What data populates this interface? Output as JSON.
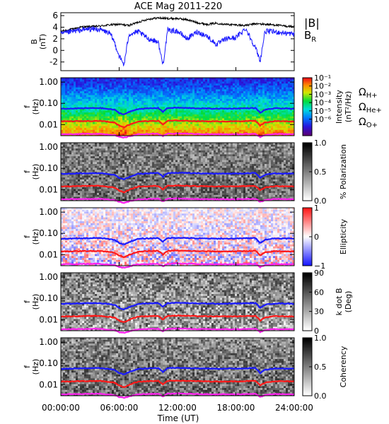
{
  "figure": {
    "title": "ACE Mag 2011-220",
    "time_axis_label": "Time (UT)"
  },
  "colors": {
    "b_total": "#000000",
    "b_radial": "#1a1aff",
    "omega_h": "#1a1aff",
    "omega_he": "#ff1a1a",
    "omega_o": "#ff22ee"
  },
  "gyro_labels": {
    "h": {
      "symbol": "Ω",
      "sub": "H+"
    },
    "he": {
      "symbol": "Ω",
      "sub": "He+"
    },
    "o": {
      "symbol": "Ω",
      "sub": "O+"
    }
  },
  "chart_data": [
    {
      "type": "line",
      "ylabel": "B",
      "yunit": "(nT)",
      "ylim": [
        -3.5,
        6.5
      ],
      "yticks": [
        -2,
        0,
        2,
        4,
        6
      ],
      "xlim": [
        "00:00:00",
        "24:00:00"
      ],
      "legend": {
        "placement": "outside-right"
      },
      "series": [
        {
          "name": "|B|",
          "color": "#000000",
          "x_hours": [
            0,
            1,
            2,
            3,
            4,
            5,
            6,
            7,
            8,
            9,
            10,
            11,
            12,
            13,
            14,
            15,
            16,
            17,
            18,
            19,
            20,
            21,
            22,
            23,
            24
          ],
          "values": [
            3.3,
            3.6,
            4.0,
            4.1,
            4.2,
            4.4,
            4.5,
            4.3,
            4.9,
            5.4,
            5.6,
            5.5,
            5.5,
            5.3,
            4.8,
            4.5,
            4.7,
            4.5,
            4.4,
            4.3,
            4.6,
            4.5,
            4.4,
            4.2,
            4.1
          ]
        },
        {
          "name": "B",
          "name_sub": "R",
          "color": "#1a1aff",
          "x_hours": [
            0,
            1,
            2,
            3,
            4,
            5,
            5.5,
            6,
            6.5,
            7,
            8,
            9,
            10,
            10.5,
            11,
            12,
            13,
            14,
            15,
            16,
            17,
            18,
            19,
            20,
            20.5,
            21,
            22,
            23,
            24
          ],
          "values": [
            2.8,
            3.2,
            3.5,
            3.7,
            3.6,
            3.0,
            1.5,
            -1.0,
            -2.5,
            2.8,
            3.2,
            2.0,
            1.5,
            -2.5,
            3.5,
            3.3,
            2.0,
            3.2,
            2.5,
            1.0,
            2.0,
            2.2,
            3.8,
            0.5,
            -1.8,
            3.3,
            3.2,
            3.0,
            2.8
          ]
        }
      ]
    },
    {
      "type": "heatmap",
      "name": "intensity",
      "ylabel": "f",
      "yunit": "(Hz)",
      "yscale": "log",
      "ylim": [
        0.003,
        1.6
      ],
      "yticks": [
        0.01,
        0.1,
        1.0
      ],
      "ytick_labels": [
        "0.01",
        "0.10",
        "1.00"
      ],
      "colorbar": {
        "label": "Intensity",
        "unit": "(nT²/Hz)",
        "scale": "log",
        "range": [
          1e-08,
          0.1
        ],
        "tick_labels": [
          "10⁻¹",
          "10⁻²",
          "10⁻³",
          "10⁻⁴",
          "10⁻⁵",
          "10⁻⁶"
        ],
        "tick_values": [
          -1,
          -2,
          -3,
          -4,
          -5,
          -6
        ],
        "colormap": "rainbow"
      }
    },
    {
      "type": "heatmap",
      "name": "polarization",
      "ylabel": "f",
      "yunit": "(Hz)",
      "yscale": "log",
      "ylim": [
        0.003,
        1.6
      ],
      "yticks": [
        0.01,
        0.1,
        1.0
      ],
      "ytick_labels": [
        "0.01",
        "0.10",
        "1.00"
      ],
      "colorbar": {
        "label": "% Polarization",
        "unit": "",
        "range": [
          0,
          1
        ],
        "tick_values": [
          0,
          0.5,
          1
        ],
        "tick_labels": [
          "0.0",
          "0.5",
          "1.0"
        ],
        "colormap": "gray-reversed"
      }
    },
    {
      "type": "heatmap",
      "name": "ellipticity",
      "ylabel": "f",
      "yunit": "(Hz)",
      "yscale": "log",
      "ylim": [
        0.003,
        1.6
      ],
      "yticks": [
        0.01,
        0.1,
        1.0
      ],
      "ytick_labels": [
        "0.01",
        "0.10",
        "1.00"
      ],
      "colorbar": {
        "label": "Ellipticity",
        "unit": "",
        "range": [
          -1,
          1
        ],
        "tick_values": [
          -1,
          0,
          1
        ],
        "tick_labels": [
          "−1",
          "0",
          "1"
        ],
        "colormap": "blue-white-red"
      }
    },
    {
      "type": "heatmap",
      "name": "kdotb",
      "ylabel": "f",
      "yunit": "(Hz)",
      "yscale": "log",
      "ylim": [
        0.003,
        1.6
      ],
      "yticks": [
        0.01,
        0.1,
        1.0
      ],
      "ytick_labels": [
        "0.01",
        "0.10",
        "1.00"
      ],
      "colorbar": {
        "label": "k dot B",
        "unit": "(Deg)",
        "range": [
          0,
          90
        ],
        "tick_values": [
          0,
          30,
          60,
          90
        ],
        "tick_labels": [
          "0",
          "30",
          "60",
          "90"
        ],
        "colormap": "gray-reversed"
      }
    },
    {
      "type": "heatmap",
      "name": "coherency",
      "ylabel": "f",
      "yunit": "(Hz)",
      "yscale": "log",
      "ylim": [
        0.003,
        1.6
      ],
      "yticks": [
        0.01,
        0.1,
        1.0
      ],
      "ytick_labels": [
        "0.01",
        "0.10",
        "1.00"
      ],
      "colorbar": {
        "label": "Coherency",
        "unit": "",
        "range": [
          0,
          1
        ],
        "tick_values": [
          0,
          0.5,
          1
        ],
        "tick_labels": [
          "0.0",
          "0.5",
          "1.0"
        ],
        "colormap": "gray-reversed"
      }
    }
  ],
  "gyrofrequencies": {
    "x_hours": [
      0,
      2,
      4,
      5.5,
      6,
      6.5,
      8,
      10,
      10.5,
      11,
      12,
      14,
      16,
      18,
      20,
      20.5,
      21,
      22,
      24
    ],
    "h_plus_hz": [
      0.055,
      0.058,
      0.06,
      0.05,
      0.035,
      0.03,
      0.055,
      0.06,
      0.04,
      0.06,
      0.062,
      0.058,
      0.056,
      0.057,
      0.06,
      0.035,
      0.05,
      0.058,
      0.056
    ],
    "he_plus_hz": [
      0.014,
      0.0145,
      0.015,
      0.0125,
      0.009,
      0.0075,
      0.014,
      0.015,
      0.01,
      0.015,
      0.0155,
      0.0145,
      0.014,
      0.0142,
      0.015,
      0.009,
      0.0125,
      0.0145,
      0.014
    ],
    "o_plus_hz": [
      0.0035,
      0.0036,
      0.0037,
      0.0032,
      0.0026,
      0.0024,
      0.0035,
      0.0037,
      0.0028,
      0.0037,
      0.0038,
      0.0036,
      0.0035,
      0.0035,
      0.0037,
      0.0026,
      0.0032,
      0.0036,
      0.0035
    ]
  },
  "time_ticks": [
    "00:00:00",
    "06:00:00",
    "12:00:00",
    "18:00:00",
    "24:00:00"
  ]
}
